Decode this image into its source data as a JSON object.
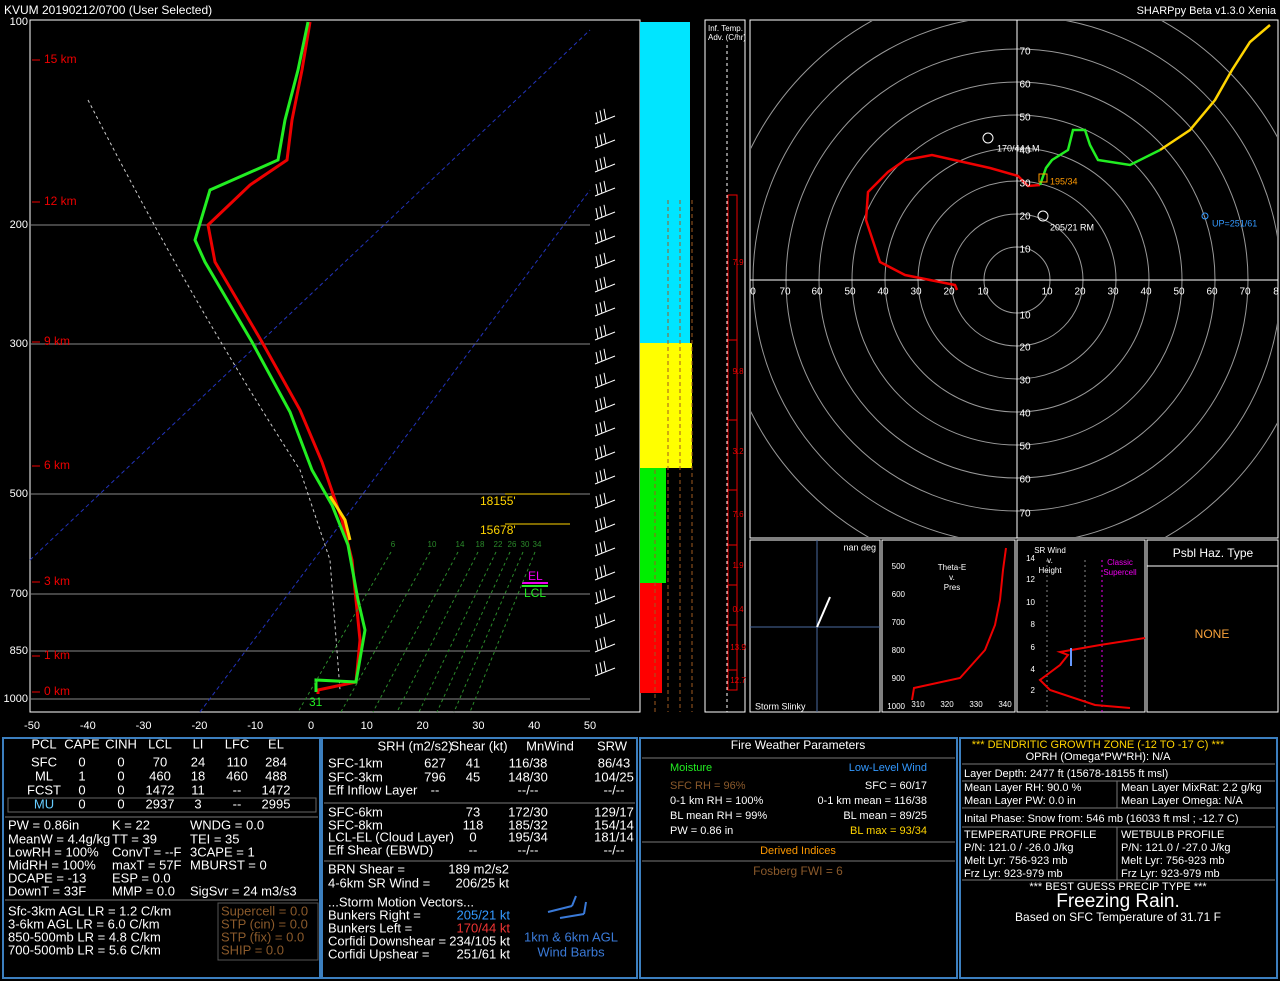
{
  "header": {
    "station_time": "KVUM  20190212/0700  (User Selected)",
    "version": "SHARPpy Beta v1.3.0 Xenia"
  },
  "skewt": {
    "pressure_labels": [
      "100",
      "200",
      "300",
      "500",
      "700",
      "850",
      "1000"
    ],
    "height_labels": [
      "15 km",
      "12 km",
      "9 km",
      "6 km",
      "3 km",
      "1 km",
      "0 km"
    ],
    "temp_labels": [
      "-50",
      "-40",
      "-30",
      "-20",
      "-10",
      "0",
      "10",
      "20",
      "30",
      "40",
      "50"
    ],
    "mixing_labels": [
      "6",
      "10",
      "14",
      "18",
      "22",
      "26",
      "30",
      "34"
    ],
    "dgz_top": "18155'",
    "dgz_bottom": "15678'",
    "el": "EL",
    "lcl": "LCL",
    "sfc_temp": "31"
  },
  "advection": {
    "title": [
      "Inf. Temp.",
      "Adv. (C/hr)"
    ],
    "values": [
      "7.9",
      "9.8",
      "3.2",
      "7.6",
      "1.9",
      "0.4",
      "13.9",
      "12.7"
    ]
  },
  "hodograph": {
    "x_left": [
      "0",
      "70",
      "60",
      "50",
      "40",
      "30",
      "20",
      "10"
    ],
    "x_right": [
      "10",
      "20",
      "30",
      "40",
      "50",
      "60",
      "70",
      "8"
    ],
    "y_top": [
      "70",
      "60",
      "50",
      "40",
      "30",
      "20",
      "10"
    ],
    "y_bottom": [
      "10",
      "20",
      "30",
      "40",
      "50",
      "60",
      "70"
    ],
    "left_mover": "170/44 LM",
    "mean_wind": "195/34",
    "right_mover": "205/21 RM",
    "upshear": "UP=251/61"
  },
  "slinky": {
    "angle": "nan deg",
    "title": "Storm Slinky"
  },
  "theta_e": {
    "title": [
      "Theta-E",
      "v.",
      "Pres"
    ],
    "y_labels": [
      "500",
      "600",
      "700",
      "800",
      "900",
      "1000"
    ],
    "x_labels": [
      "310",
      "320",
      "330",
      "340"
    ]
  },
  "sr_wind": {
    "title": [
      "SR Wind",
      "v.",
      "Height"
    ],
    "supercell": [
      "Classic",
      "Supercell"
    ],
    "y_labels": [
      "14",
      "12",
      "10",
      "8",
      "6",
      "4",
      "2"
    ]
  },
  "hazard": {
    "title": "Psbl Haz. Type",
    "value": "NONE"
  },
  "thermo": {
    "header": [
      "PCL",
      "CAPE",
      "CINH",
      "LCL",
      "LI",
      "LFC",
      "EL"
    ],
    "rows": [
      [
        "SFC",
        "0",
        "0",
        "70",
        "24",
        "110",
        "284"
      ],
      [
        "ML",
        "1",
        "0",
        "460",
        "18",
        "460",
        "488"
      ],
      [
        "FCST",
        "0",
        "0",
        "1472",
        "11",
        "--",
        "1472"
      ],
      [
        "MU",
        "0",
        "0",
        "2937",
        "3",
        "--",
        "2995"
      ]
    ],
    "col1": [
      "PW = 0.86in",
      "MeanW = 4.4g/kg",
      "LowRH = 100%",
      "MidRH = 100%",
      "DCAPE = -13",
      "DownT = 33F"
    ],
    "col2": [
      "K = 22",
      "TT = 39",
      "ConvT = --F",
      "maxT = 57F",
      "ESP = 0.0",
      "MMP = 0.0"
    ],
    "col3": [
      "WNDG = 0.0",
      "TEI = 35",
      "3CAPE = 1",
      "MBURST = 0",
      "SigSvr = 24 m3/s3"
    ],
    "lapse": [
      "Sfc-3km AGL LR = 1.2 C/km",
      "3-6km AGL LR = 6.0 C/km",
      "850-500mb LR = 4.8 C/km",
      "700-500mb LR = 5.6 C/km"
    ],
    "severe": [
      "Supercell = 0.0",
      "STP (cin) = 0.0",
      "STP (fix) = 0.0",
      "SHIP = 0.0"
    ]
  },
  "kinematics": {
    "header": [
      "SRH (m2/s2)",
      "Shear (kt)",
      "MnWind",
      "SRW"
    ],
    "rows": [
      {
        "label": "SFC-1km",
        "srh": "627",
        "shear": "41",
        "mnwind": "116/38",
        "srw": "86/43"
      },
      {
        "label": "SFC-3km",
        "srh": "796",
        "shear": "45",
        "mnwind": "148/30",
        "srw": "104/25"
      },
      {
        "label": "Eff Inflow Layer",
        "srh": "--",
        "mnwind": "--/--",
        "srw": "--/--"
      },
      {
        "label": "SFC-6km",
        "shear": "73",
        "mnwind": "172/30",
        "srw": "129/17"
      },
      {
        "label": "SFC-8km",
        "shear": "118",
        "mnwind": "185/32",
        "srw": "154/14"
      },
      {
        "label": "LCL-EL (Cloud Layer)",
        "shear": "0",
        "mnwind": "195/34",
        "srw": "181/14"
      },
      {
        "label": "Eff Shear (EBWD)",
        "shear": "--",
        "mnwind": "--/--",
        "srw": "--/--"
      }
    ],
    "params": [
      {
        "label": "BRN Shear =",
        "value": "189 m2/s2"
      },
      {
        "label": "4-6km SR Wind =",
        "value": "206/25 kt"
      }
    ],
    "motion_title": "...Storm Motion Vectors...",
    "motion": [
      {
        "label": "Bunkers Right =",
        "value": "205/21 kt"
      },
      {
        "label": "Bunkers Left =",
        "value": "170/44 kt"
      },
      {
        "label": "Corfidi Downshear =",
        "value": "234/105 kt"
      },
      {
        "label": "Corfidi Upshear =",
        "value": "251/61 kt"
      }
    ],
    "barbs_label": [
      "1km & 6km AGL",
      "Wind Barbs"
    ]
  },
  "fire": {
    "title": "Fire Weather Parameters",
    "moisture": "Moisture",
    "wind": "Low-Level Wind",
    "left": [
      "SFC RH = 96%",
      "0-1 km RH = 100%",
      "BL mean RH = 99%",
      "PW = 0.86 in"
    ],
    "right": [
      "SFC = 60/17",
      "0-1 km mean = 116/38",
      "BL mean = 89/25",
      "BL max = 93/34"
    ],
    "derived": "Derived Indices",
    "fosberg": "Fosberg FWI = 6"
  },
  "winter": {
    "title": "*** DENDRITIC GROWTH ZONE (-12 TO -17 C) ***",
    "oprh": "OPRH (Omega*PW*RH): N/A",
    "depth": "Layer Depth: 2477 ft (15678-18155 ft msl)",
    "left": [
      "Mean Layer RH: 90.0 %",
      "Mean Layer PW: 0.0 in"
    ],
    "right": [
      "Mean Layer MixRat: 2.2 g/kg",
      "Mean Layer Omega: N/A"
    ],
    "phase": "Inital Phase: Snow from: 546 mb (16033 ft msl ; -12.7 C)",
    "temp_profile": [
      "TEMPERATURE PROFILE",
      "P/N: 121.0 / -26.0 J/kg",
      "Melt Lyr: 756-923 mb",
      "Frz Lyr: 923-979 mb"
    ],
    "wetbulb_profile": [
      "WETBULB PROFILE",
      "P/N: 121.0 / -27.0 J/kg",
      "Melt Lyr: 756-923 mb",
      "Frz Lyr: 923-979 mb"
    ],
    "guess_title": "*** BEST GUESS PRECIP TYPE ***",
    "guess": "Freezing Rain.",
    "basis": "Based on SFC Temperature of 31.71 F"
  }
}
